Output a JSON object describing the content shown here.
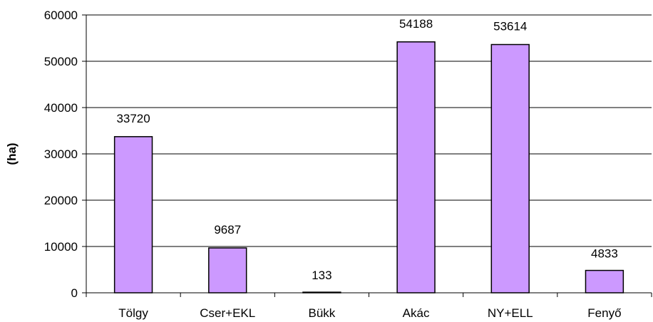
{
  "chart_data": {
    "type": "bar",
    "categories": [
      "Tölgy",
      "Cser+EKL",
      "Bükk",
      "Akác",
      "NY+ELL",
      "Fenyő"
    ],
    "values": [
      33720,
      9687,
      133,
      54188,
      53614,
      4833
    ],
    "data_labels": [
      "33720",
      "9687",
      "133",
      "54188",
      "53614",
      "4833"
    ],
    "ylabel": "(ha)",
    "ylim": [
      0,
      60000
    ],
    "yticks": [
      0,
      10000,
      20000,
      30000,
      40000,
      50000,
      60000
    ],
    "ytick_labels": [
      "0",
      "10000",
      "20000",
      "30000",
      "40000",
      "50000",
      "60000"
    ],
    "grid": true,
    "legend": "none",
    "bar_color": "#cc99ff"
  }
}
